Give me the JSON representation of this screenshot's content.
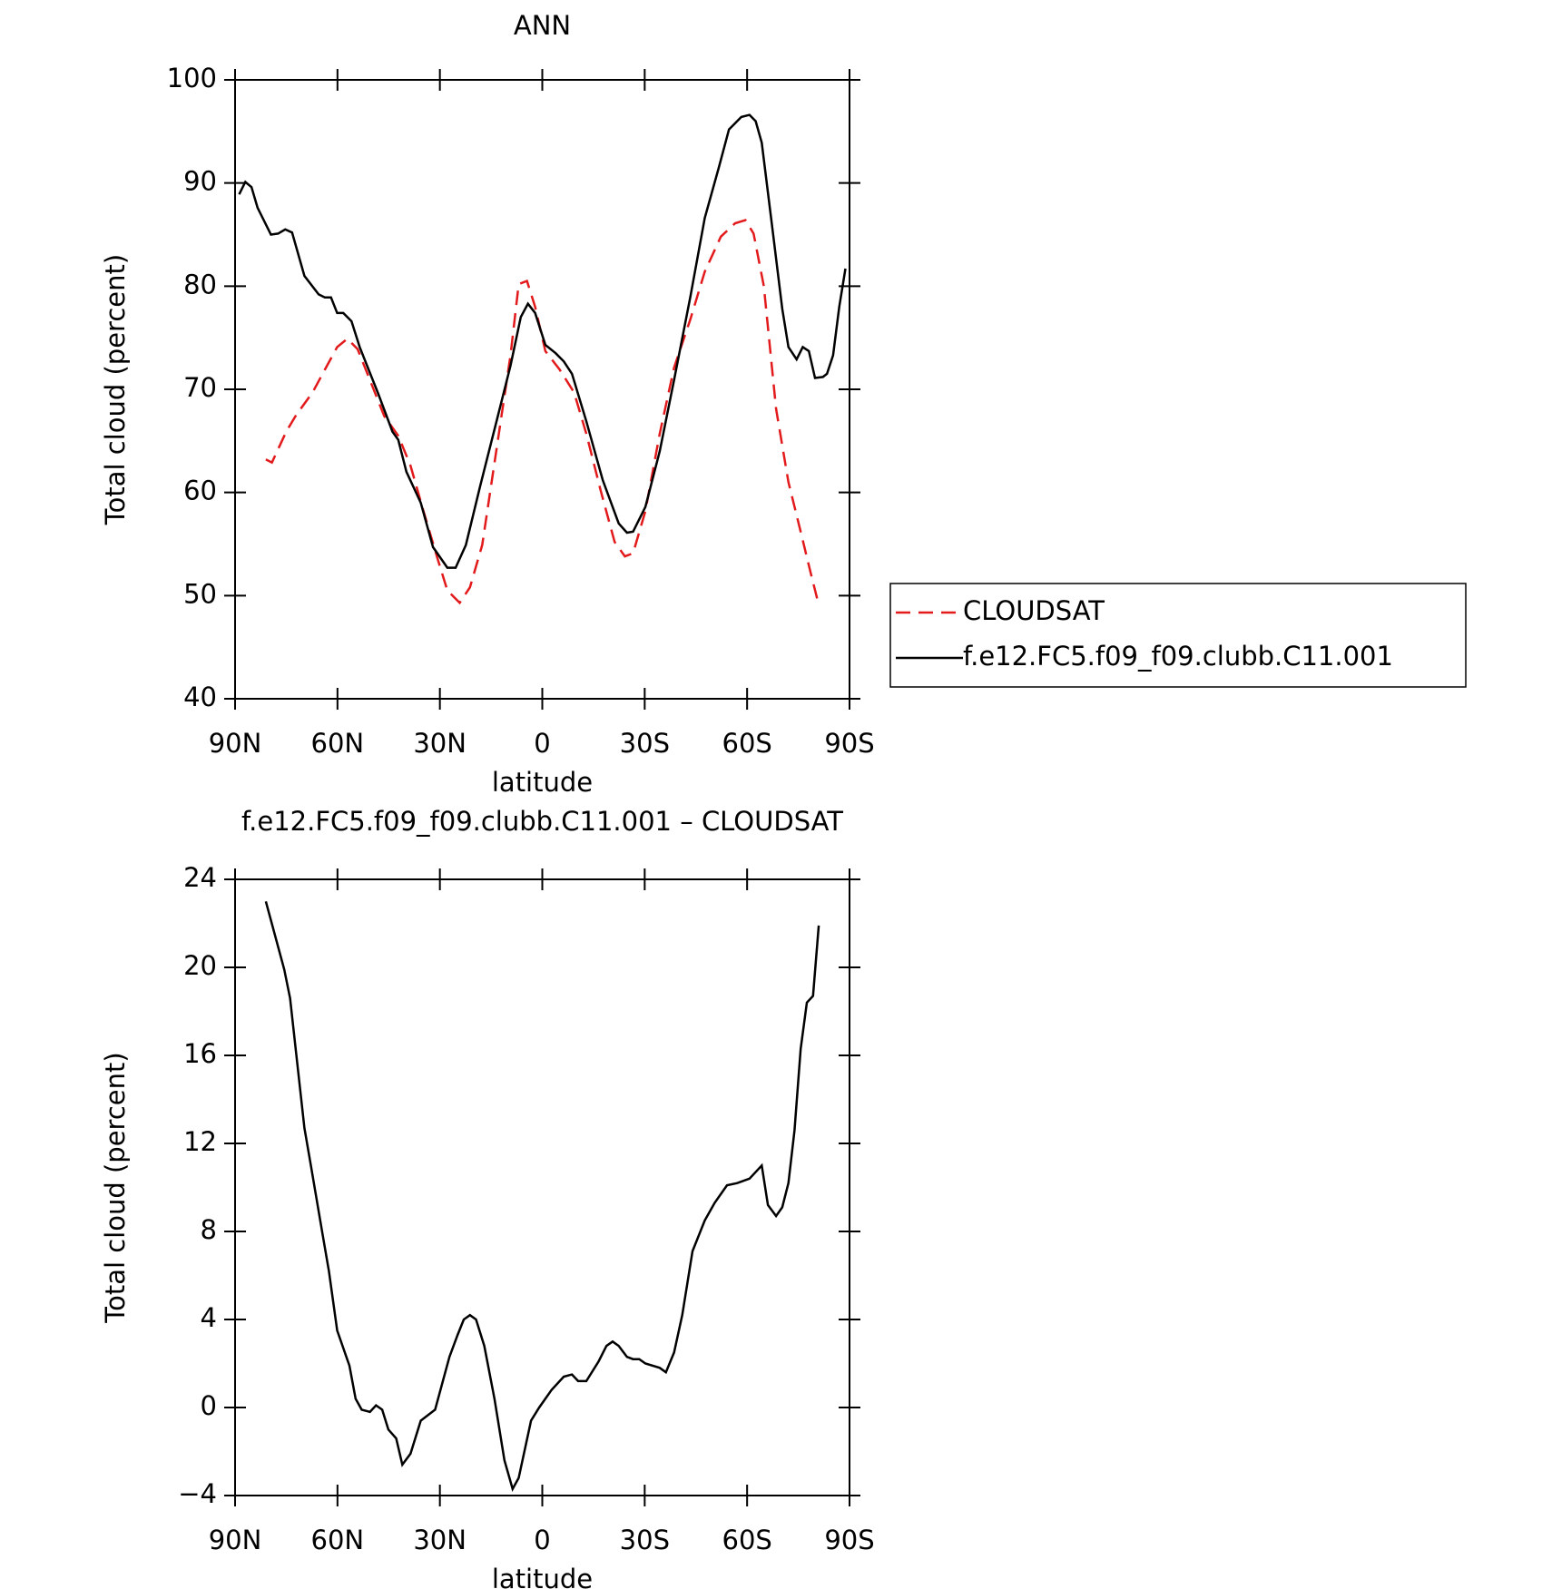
{
  "chart_data": [
    {
      "type": "line",
      "title": "ANN",
      "x_label": "latitude",
      "y_label": "Total cloud (percent)",
      "xlim": [
        90,
        -90
      ],
      "xticks": [
        {
          "value": 90,
          "label": "90N"
        },
        {
          "value": 60,
          "label": "60N"
        },
        {
          "value": 30,
          "label": "30N"
        },
        0,
        {
          "value": -30,
          "label": "30S"
        },
        {
          "value": -60,
          "label": "60S"
        },
        {
          "value": -90,
          "label": "90S"
        }
      ],
      "ylim": [
        40,
        100
      ],
      "yticks": [
        40,
        50,
        60,
        70,
        80,
        90,
        100
      ],
      "legend": "right",
      "series": [
        {
          "name": "CLOUDSAT",
          "color": "#e31a1c",
          "dashed": true,
          "x": [
            81.0,
            79.2,
            75.0,
            72.1,
            67.3,
            63.7,
            60.1,
            57.1,
            54.1,
            50.5,
            46.3,
            42.2,
            38.6,
            35.0,
            30.8,
            27.8,
            24.2,
            21.2,
            17.6,
            13.4,
            9.3,
            6.9,
            4.5,
            2.1,
            -0.9,
            -5.1,
            -9.3,
            -12.9,
            -17.1,
            -21.2,
            -24.2,
            -26.6,
            -30.2,
            -34.4,
            -38.6,
            -43.4,
            -47.6,
            -52.3,
            -56.5,
            -59.5,
            -61.9,
            -64.9,
            -68.5,
            -72.1,
            -75.7,
            -78.7,
            -81.0
          ],
          "values": [
            63.2,
            62.9,
            65.9,
            67.5,
            69.7,
            71.9,
            74.1,
            74.9,
            73.9,
            70.9,
            67.4,
            65.5,
            62.6,
            58.4,
            53.7,
            50.5,
            49.3,
            50.8,
            54.9,
            64.2,
            73.3,
            80.2,
            80.5,
            78.0,
            73.7,
            71.9,
            69.7,
            65.7,
            60.2,
            55.2,
            53.8,
            54.1,
            58.2,
            65.7,
            72.1,
            76.8,
            81.4,
            84.8,
            86.1,
            86.4,
            85.1,
            80.0,
            68.1,
            61.0,
            56.2,
            52.1,
            49.1
          ]
        },
        {
          "name": "f.e12.FC5.f09_f09.clubb.C11.001",
          "color": "#000000",
          "dashed": false,
          "x": [
            88.8,
            87.0,
            85.2,
            83.4,
            79.5,
            77.4,
            75.3,
            73.3,
            69.7,
            65.5,
            63.7,
            61.9,
            60.1,
            58.3,
            55.9,
            53.5,
            48.1,
            43.9,
            42.2,
            39.8,
            35.6,
            32.0,
            27.8,
            25.4,
            22.4,
            18.2,
            13.4,
            9.3,
            6.3,
            4.2,
            2.1,
            -0.9,
            -3.9,
            -6.3,
            -8.7,
            -12.9,
            -17.7,
            -22.4,
            -24.8,
            -26.6,
            -30.2,
            -34.4,
            -38.6,
            -43.4,
            -47.6,
            -51.8,
            -54.7,
            -58.3,
            -60.7,
            -62.5,
            -64.3,
            -67.3,
            -70.3,
            -72.1,
            -74.5,
            -76.3,
            -78.1,
            -79.9,
            -82.2,
            -83.4,
            -85.2,
            -87.0,
            -88.8
          ],
          "values": [
            88.9,
            90.1,
            89.6,
            87.6,
            85.0,
            85.1,
            85.5,
            85.2,
            81.0,
            79.2,
            78.9,
            78.9,
            77.4,
            77.4,
            76.6,
            74.1,
            69.6,
            65.9,
            65.1,
            62.0,
            59.0,
            54.7,
            52.7,
            52.7,
            54.9,
            60.6,
            66.9,
            72.3,
            77.0,
            78.3,
            77.4,
            74.3,
            73.5,
            72.7,
            71.5,
            66.9,
            61.2,
            57.0,
            56.1,
            56.2,
            58.6,
            64.0,
            70.9,
            79.0,
            86.6,
            91.6,
            95.2,
            96.4,
            96.6,
            96.0,
            93.9,
            85.9,
            77.8,
            74.1,
            72.9,
            74.1,
            73.7,
            71.1,
            71.2,
            71.5,
            73.3,
            78.0,
            81.7
          ]
        }
      ]
    },
    {
      "type": "line",
      "title": "f.e12.FC5.f09_f09.clubb.C11.001 – CLOUDSAT",
      "x_label": "latitude",
      "y_label": "Total cloud (percent)",
      "xlim": [
        90,
        -90
      ],
      "xticks": [
        {
          "value": 90,
          "label": "90N"
        },
        {
          "value": 60,
          "label": "60N"
        },
        {
          "value": 30,
          "label": "30N"
        },
        0,
        {
          "value": -30,
          "label": "30S"
        },
        {
          "value": -60,
          "label": "60S"
        },
        {
          "value": -90,
          "label": "90S"
        }
      ],
      "ylim": [
        -4,
        24
      ],
      "yticks": [
        {
          "value": -4,
          "label": "−4"
        },
        0,
        4,
        8,
        12,
        16,
        20,
        24
      ],
      "series": [
        {
          "color": "#000000",
          "dashed": false,
          "x": [
            81.0,
            75.6,
            73.9,
            69.7,
            67.9,
            64.3,
            62.5,
            60.1,
            56.5,
            54.7,
            52.9,
            50.5,
            48.7,
            46.9,
            45.1,
            42.8,
            41.0,
            38.6,
            35.6,
            31.4,
            27.2,
            24.8,
            23.0,
            21.2,
            19.4,
            17.0,
            14.0,
            11.1,
            8.7,
            6.9,
            3.3,
            0.9,
            -2.7,
            -6.3,
            -8.7,
            -10.5,
            -12.9,
            -16.5,
            -18.8,
            -20.6,
            -22.4,
            -24.8,
            -26.6,
            -28.4,
            -30.2,
            -34.4,
            -36.2,
            -38.6,
            -41.0,
            -44.0,
            -47.6,
            -50.5,
            -54.1,
            -57.1,
            -60.7,
            -64.3,
            -66.1,
            -68.5,
            -70.3,
            -72.1,
            -73.9,
            -75.7,
            -77.5,
            -79.3,
            -81.0
          ],
          "values": [
            23.0,
            19.9,
            18.6,
            12.7,
            11.1,
            7.8,
            6.2,
            3.5,
            1.9,
            0.4,
            -0.1,
            -0.2,
            0.1,
            -0.1,
            -1.0,
            -1.4,
            -2.6,
            -2.1,
            -0.6,
            -0.1,
            2.3,
            3.3,
            4.0,
            4.2,
            4.0,
            2.8,
            0.4,
            -2.4,
            -3.7,
            -3.2,
            -0.6,
            0.0,
            0.8,
            1.4,
            1.5,
            1.2,
            1.2,
            2.1,
            2.8,
            3.0,
            2.8,
            2.3,
            2.2,
            2.2,
            2.0,
            1.8,
            1.6,
            2.5,
            4.2,
            7.1,
            8.5,
            9.3,
            10.1,
            10.2,
            10.4,
            11.0,
            9.2,
            8.7,
            9.1,
            10.2,
            12.6,
            16.3,
            18.4,
            18.7,
            21.9
          ]
        }
      ]
    }
  ]
}
